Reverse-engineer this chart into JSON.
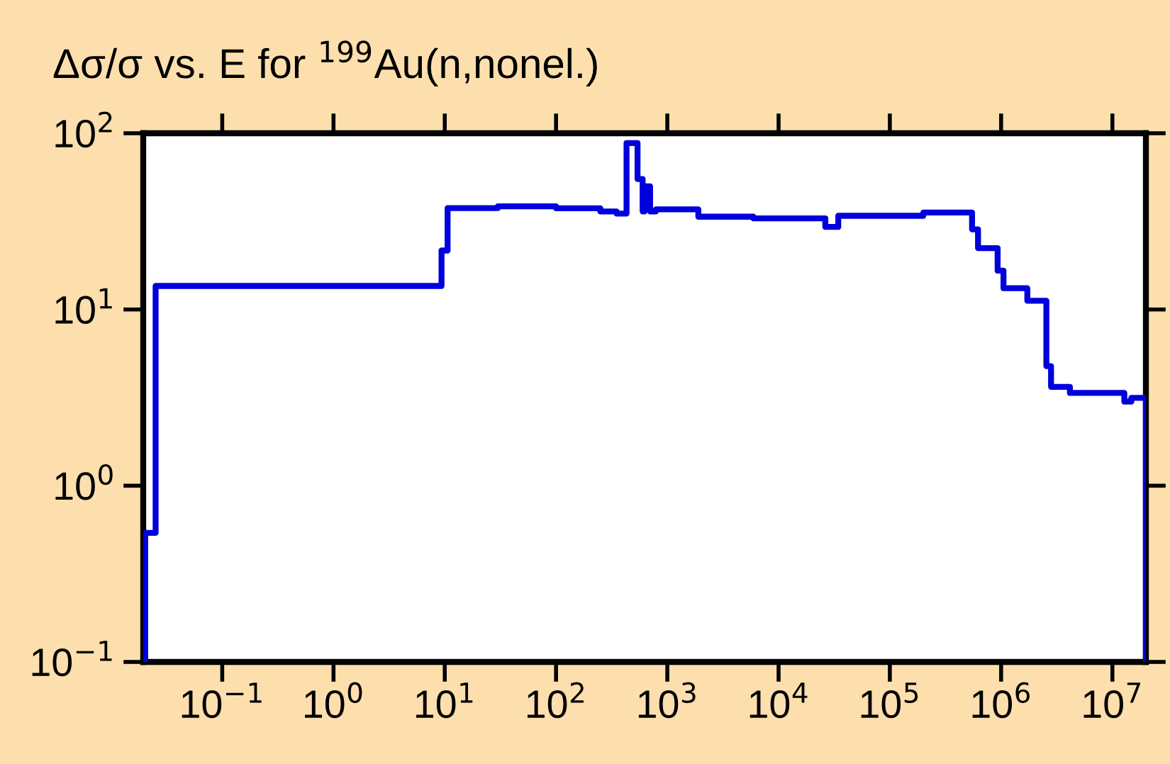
{
  "chart_data": {
    "type": "step",
    "title": "Δσ/σ vs. E for $^{199}$Au(n,nonel.)",
    "log": "xy",
    "grid": false,
    "line_style": "solid",
    "marker": "none",
    "xlim": [
      0.0195,
      20000000.0
    ],
    "ylim": [
      0.1,
      100
    ],
    "xticks": [
      {
        "value": 0.1,
        "label": "10$^{−1}$"
      },
      {
        "value": 1,
        "label": "10$^{0}$"
      },
      {
        "value": 10,
        "label": "10$^{1}$"
      },
      {
        "value": 100,
        "label": "10$^{2}$"
      },
      {
        "value": 1000,
        "label": "10$^{3}$"
      },
      {
        "value": 10000,
        "label": "10$^{4}$"
      },
      {
        "value": 100000,
        "label": "10$^{5}$"
      },
      {
        "value": 1000000,
        "label": "10$^{6}$"
      },
      {
        "value": 10000000,
        "label": "10$^{7}$"
      }
    ],
    "yticks": [
      {
        "value": 0.1,
        "label": "10$^{−1}$"
      },
      {
        "value": 1,
        "label": "10$^{0}$"
      },
      {
        "value": 10,
        "label": "10$^{1}$"
      },
      {
        "value": 100,
        "label": "10$^{2}$"
      }
    ],
    "series": [
      {
        "color": "#0000dd",
        "x": [
          0.0203,
          0.0203,
          0.0252,
          9.35,
          10.6,
          30,
          100,
          250,
          350,
          430,
          540,
          600,
          625,
          700,
          790,
          1900,
          5930,
          26300,
          34400,
          200000,
          548000,
          620000,
          930000,
          1050000,
          1720000,
          2550000,
          2810000,
          4150000,
          12800000,
          14800000,
          20000000
        ],
        "values": [
          0.1,
          0.54,
          13.6,
          21.6,
          37.6,
          38.5,
          37.5,
          36,
          35,
          88,
          55,
          36,
          50,
          36,
          37,
          33.6,
          32.9,
          29.4,
          34,
          35.5,
          28.5,
          22.3,
          16.6,
          13.2,
          11.2,
          4.77,
          3.64,
          3.36,
          3.0,
          3.15,
          0.1
        ]
      }
    ]
  }
}
